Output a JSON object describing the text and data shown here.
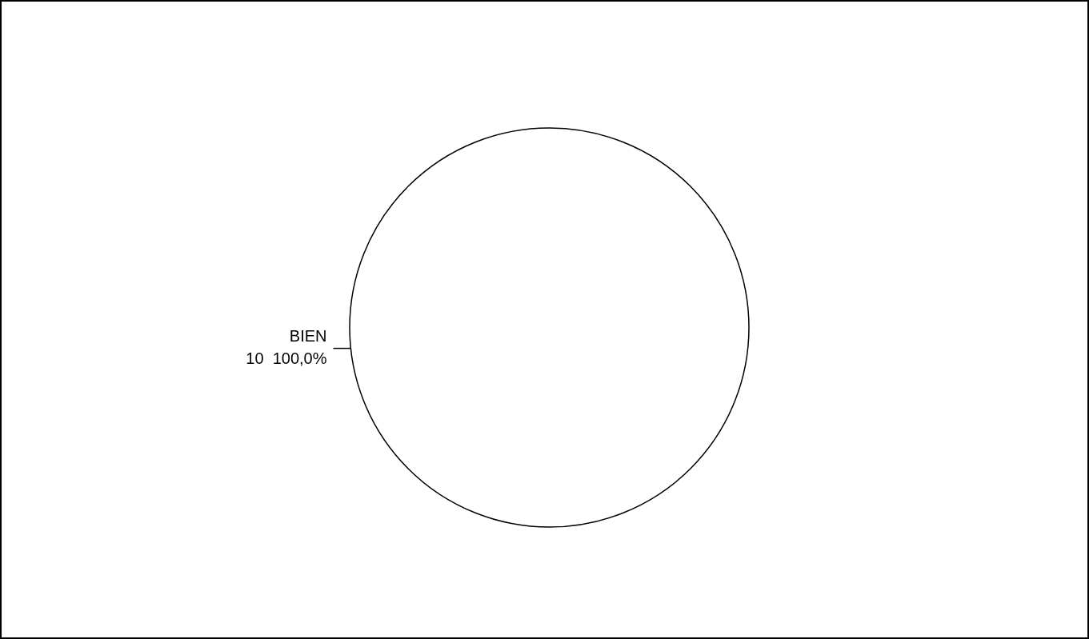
{
  "chart_data": {
    "type": "pie",
    "categories": [
      "BIEN"
    ],
    "values": [
      10
    ],
    "colors": [
      "#ffffff"
    ],
    "data_labels": true,
    "annotations": [
      "100,0%"
    ],
    "legend": false
  }
}
